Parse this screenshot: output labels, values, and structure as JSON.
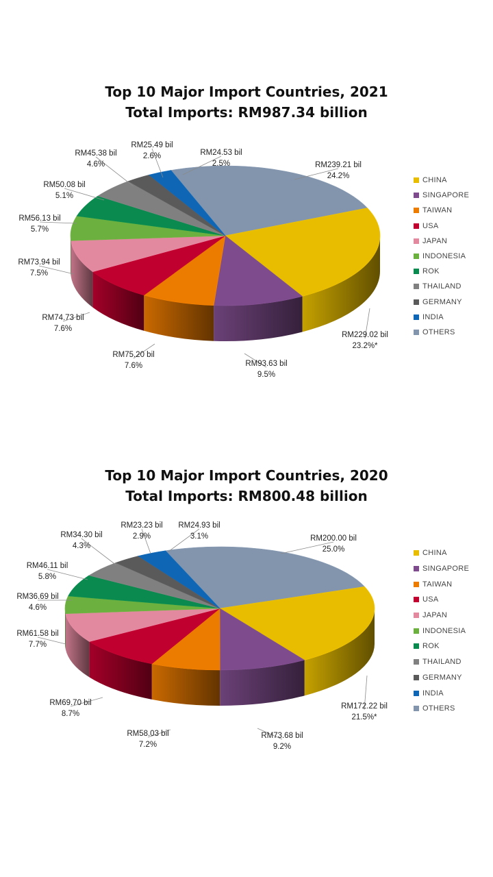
{
  "charts": [
    {
      "title": "Top 10 Major Import Countries, 2021",
      "subtitle": "Total Imports: RM987.34 billion"
    },
    {
      "title": "Top 10 Major Import Countries, 2020",
      "subtitle": "Total Imports: RM800.48 billion"
    }
  ],
  "legend": [
    "CHINA",
    "SINGAPORE",
    "TAIWAN",
    "USA",
    "JAPAN",
    "INDONESIA",
    "ROK",
    "THAILAND",
    "GERMANY",
    "INDIA",
    "OTHERS"
  ],
  "colors": {
    "CHINA": "#e8bd00",
    "SINGAPORE": "#7e4c8c",
    "TAIWAN": "#ec7c00",
    "USA": "#c0002f",
    "JAPAN": "#e2889f",
    "INDONESIA": "#6cb040",
    "ROK": "#0a8a4e",
    "THAILAND": "#808080",
    "GERMANY": "#5a5a5a",
    "INDIA": "#0f66b5",
    "OTHERS": "#8295ac"
  },
  "chart_data": [
    {
      "type": "pie",
      "title": "Top 10 Major Import Countries, 2021",
      "subtitle": "Total Imports: RM987.34 billion",
      "legend_position": "right",
      "categories": [
        "CHINA",
        "SINGAPORE",
        "TAIWAN",
        "USA",
        "JAPAN",
        "INDONESIA",
        "ROK",
        "THAILAND",
        "GERMANY",
        "INDIA",
        "OTHERS"
      ],
      "values": [
        229.02,
        93.63,
        75.2,
        74.73,
        73.94,
        56.13,
        50.08,
        45.38,
        25.49,
        24.53,
        239.21
      ],
      "percents": [
        23.2,
        9.5,
        7.6,
        7.6,
        7.5,
        5.7,
        5.1,
        4.6,
        2.6,
        2.5,
        24.2
      ],
      "labels": [
        "RM229.02 bil",
        "RM93.63 bil",
        "RM75.20 bil",
        "RM74.73 bil",
        "RM73.94 bil",
        "RM56.13 bil",
        "RM50.08 bil",
        "RM45.38 bil",
        "RM25.49 bil",
        "RM24.53 bil",
        "RM239.21 bil"
      ],
      "percent_labels": [
        "23.2%*",
        "9.5%",
        "7.6%",
        "7.6%",
        "7.5%",
        "5.7%",
        "5.1%",
        "4.6%",
        "2.6%",
        "2.5%",
        "24.2%"
      ]
    },
    {
      "type": "pie",
      "title": "Top 10 Major Import Countries, 2020",
      "subtitle": "Total Imports: RM800.48 billion",
      "legend_position": "right",
      "categories": [
        "CHINA",
        "SINGAPORE",
        "TAIWAN",
        "USA",
        "JAPAN",
        "INDONESIA",
        "ROK",
        "THAILAND",
        "GERMANY",
        "INDIA",
        "OTHERS"
      ],
      "values": [
        172.22,
        73.68,
        58.03,
        69.7,
        61.58,
        36.69,
        46.11,
        34.3,
        23.23,
        24.93,
        200.0
      ],
      "percents": [
        21.5,
        9.2,
        7.2,
        8.7,
        7.7,
        4.6,
        5.8,
        4.3,
        2.9,
        3.1,
        25.0
      ],
      "labels": [
        "RM172.22 bil",
        "RM73.68 bil",
        "RM58.03 bil",
        "RM69.70 bil",
        "RM61.58 bil",
        "RM36.69 bil",
        "RM46.11 bil",
        "RM34.30 bil",
        "RM23.23 bil",
        "RM24.93 bil",
        "RM200.00 bil"
      ],
      "percent_labels": [
        "21.5%*",
        "9.2%",
        "7.2%",
        "8.7%",
        "7.7%",
        "4.6%",
        "5.8%",
        "4.3%",
        "2.9%",
        "3.1%",
        "25.0%"
      ]
    }
  ]
}
